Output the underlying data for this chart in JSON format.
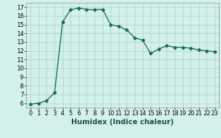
{
  "x": [
    0,
    1,
    2,
    3,
    4,
    5,
    6,
    7,
    8,
    9,
    10,
    11,
    12,
    13,
    14,
    15,
    16,
    17,
    18,
    19,
    20,
    21,
    22,
    23
  ],
  "y": [
    5.9,
    6.0,
    6.3,
    7.2,
    15.3,
    16.7,
    16.9,
    16.75,
    16.7,
    16.75,
    15.0,
    14.8,
    14.4,
    13.5,
    13.2,
    11.7,
    12.2,
    12.6,
    12.4,
    12.4,
    12.3,
    12.1,
    12.0,
    11.9
  ],
  "line_color": "#1a6b5a",
  "marker": "D",
  "marker_size": 2.2,
  "bg_color": "#d4f0eb",
  "grid_color": "#a8d8cf",
  "xlabel": "Humidex (Indice chaleur)",
  "xlim": [
    -0.5,
    23.5
  ],
  "ylim": [
    5.5,
    17.5
  ],
  "yticks": [
    6,
    7,
    8,
    9,
    10,
    11,
    12,
    13,
    14,
    15,
    16,
    17
  ],
  "xticks": [
    0,
    1,
    2,
    3,
    4,
    5,
    6,
    7,
    8,
    9,
    10,
    11,
    12,
    13,
    14,
    15,
    16,
    17,
    18,
    19,
    20,
    21,
    22,
    23
  ],
  "xtick_labels": [
    "0",
    "1",
    "2",
    "3",
    "4",
    "5",
    "6",
    "7",
    "8",
    "9",
    "10",
    "11",
    "12",
    "13",
    "14",
    "15",
    "16",
    "17",
    "18",
    "19",
    "20",
    "21",
    "22",
    "23"
  ],
  "tick_fontsize": 6.0,
  "xlabel_fontsize": 7.5
}
